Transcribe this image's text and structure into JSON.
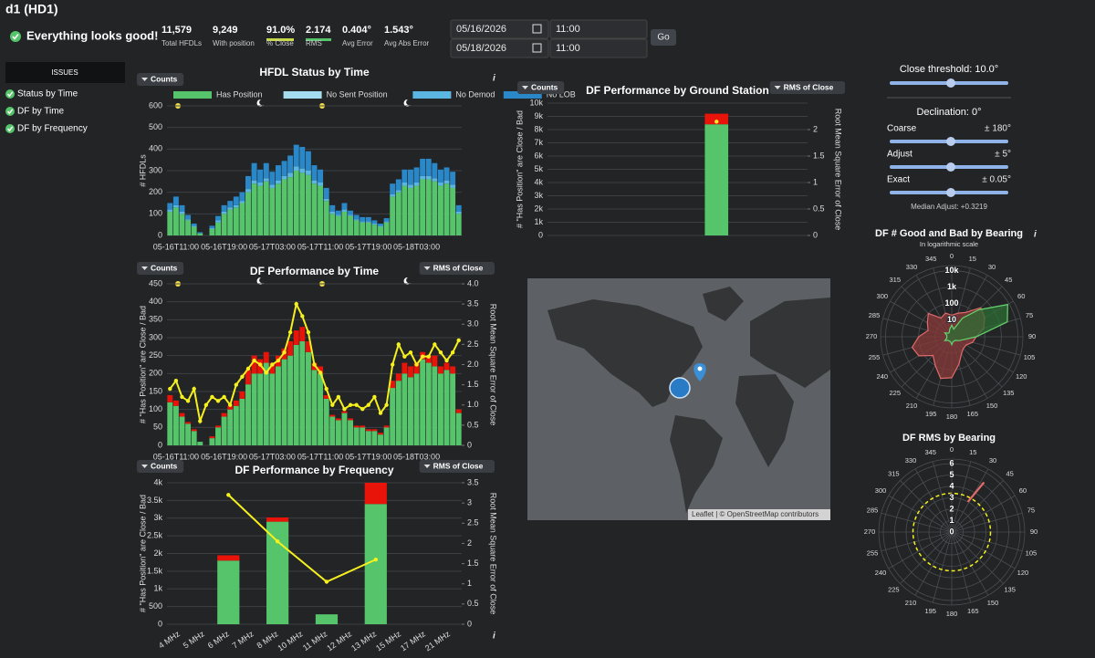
{
  "header": {
    "title": "d1 (HD1)",
    "status": "Everything looks good!",
    "stats": [
      {
        "value": "11,579",
        "label": "Total HFDLs"
      },
      {
        "value": "9,249",
        "label": "With position"
      },
      {
        "value": "91.0%",
        "label": "% Close"
      },
      {
        "value": "2.174",
        "label": "RMS"
      },
      {
        "value": "0.404°",
        "label": "Avg Error"
      },
      {
        "value": "1.543°",
        "label": "Avg Abs Error"
      }
    ],
    "start_date": "05/16/2026",
    "start_time": "11:00",
    "end_date": "05/18/2026",
    "end_time": "11:00",
    "go": "Go"
  },
  "sidebar": {
    "heading": "ISSUES",
    "items": [
      "Status by Time",
      "DF by Time",
      "DF by Frequency"
    ]
  },
  "controls": {
    "close_threshold": "Close threshold: 10.0°",
    "declination": "Declination: 0°",
    "sliders": [
      {
        "label": "Coarse",
        "range": "± 180°"
      },
      {
        "label": "Adjust",
        "range": "± 5°"
      },
      {
        "label": "Exact",
        "range": "± 0.05°"
      }
    ],
    "median_adjust": "Median Adjust: +0.3219"
  },
  "map": {
    "attribution": "Leaflet | © OpenStreetMap contributors"
  },
  "chart_data": [
    {
      "type": "bar",
      "title": "HFDL Status by Time",
      "left_button": "Counts",
      "info": "i",
      "y_label": "# HFDLs",
      "grid": true,
      "categories": [
        null,
        "05-16T11:00",
        null,
        null,
        null,
        null,
        null,
        null,
        null,
        "05-16T19:00",
        null,
        null,
        null,
        null,
        null,
        null,
        null,
        "05-17T03:00",
        null,
        null,
        null,
        null,
        null,
        null,
        null,
        "05-17T11:00",
        null,
        null,
        null,
        null,
        null,
        null,
        null,
        "05-17T19:00",
        null,
        null,
        null,
        null,
        null,
        null,
        null,
        "05-18T03:00",
        null,
        null,
        null,
        null,
        null,
        null,
        null
      ],
      "ylim": [
        0,
        600
      ],
      "yticks": [
        0,
        100,
        200,
        300,
        400,
        500,
        600
      ],
      "series": [
        {
          "name": "Has Position",
          "color": "#55c46a",
          "values": [
            110,
            130,
            100,
            70,
            40,
            10,
            0,
            30,
            60,
            100,
            120,
            130,
            150,
            200,
            240,
            230,
            250,
            220,
            240,
            260,
            270,
            300,
            290,
            280,
            240,
            230,
            160,
            100,
            90,
            110,
            90,
            70,
            60,
            60,
            50,
            40,
            60,
            180,
            200,
            230,
            220,
            230,
            260,
            260,
            250,
            230,
            240,
            220,
            100
          ]
        },
        {
          "name": "No Sent Position",
          "color": "#a6dcef",
          "values": [
            0,
            0,
            0,
            0,
            0,
            0,
            0,
            0,
            0,
            0,
            0,
            0,
            0,
            0,
            0,
            0,
            0,
            0,
            0,
            0,
            0,
            0,
            0,
            0,
            0,
            0,
            0,
            0,
            0,
            0,
            0,
            0,
            0,
            0,
            0,
            0,
            0,
            0,
            0,
            0,
            0,
            0,
            0,
            0,
            0,
            0,
            0,
            0,
            0
          ]
        },
        {
          "name": "No Demod",
          "color": "#5cb6e2",
          "values": [
            10,
            10,
            10,
            5,
            5,
            0,
            0,
            5,
            10,
            10,
            10,
            10,
            10,
            15,
            15,
            15,
            15,
            15,
            15,
            15,
            20,
            20,
            20,
            20,
            15,
            15,
            10,
            10,
            5,
            10,
            5,
            5,
            5,
            5,
            5,
            5,
            5,
            10,
            10,
            15,
            15,
            15,
            15,
            15,
            15,
            15,
            15,
            15,
            10
          ]
        },
        {
          "name": "No LOB",
          "color": "#2a88c9",
          "values": [
            30,
            40,
            30,
            20,
            10,
            5,
            0,
            10,
            20,
            30,
            30,
            40,
            40,
            60,
            80,
            60,
            70,
            60,
            70,
            70,
            80,
            100,
            100,
            90,
            70,
            60,
            50,
            30,
            20,
            30,
            20,
            20,
            20,
            20,
            15,
            10,
            15,
            50,
            50,
            60,
            70,
            70,
            80,
            80,
            70,
            60,
            60,
            60,
            30
          ]
        }
      ]
    },
    {
      "type": "bar",
      "title": "DF Performance by Time",
      "left_button": "Counts",
      "right_button": "RMS of Close",
      "y_label": "# \"Has Position\" are Close / Bad",
      "y2_label": "Root Mean Square Error of Close",
      "grid": true,
      "categories": [
        null,
        "05-16T11:00",
        null,
        null,
        null,
        null,
        null,
        null,
        null,
        "05-16T19:00",
        null,
        null,
        null,
        null,
        null,
        null,
        null,
        "05-17T03:00",
        null,
        null,
        null,
        null,
        null,
        null,
        null,
        "05-17T11:00",
        null,
        null,
        null,
        null,
        null,
        null,
        null,
        "05-17T19:00",
        null,
        null,
        null,
        null,
        null,
        null,
        null,
        "05-18T03:00",
        null,
        null,
        null,
        null,
        null,
        null,
        null
      ],
      "ylim": [
        0,
        450
      ],
      "yticks": [
        0,
        50,
        100,
        150,
        200,
        250,
        300,
        350,
        400,
        450
      ],
      "y2lim": [
        0,
        4
      ],
      "y2ticks": [
        0,
        0.5,
        {
          "value": 1,
          "label": "1.0"
        },
        1.5,
        {
          "value": 2,
          "label": "2.0"
        },
        2.5,
        {
          "value": 3,
          "label": "3.0"
        },
        3.5,
        {
          "value": 4,
          "label": "4.0"
        }
      ],
      "series": [
        {
          "color": "#55c46a",
          "values": [
            120,
            110,
            80,
            60,
            40,
            10,
            0,
            20,
            50,
            80,
            100,
            110,
            130,
            170,
            200,
            200,
            230,
            200,
            220,
            240,
            250,
            280,
            290,
            260,
            210,
            200,
            130,
            80,
            70,
            90,
            70,
            50,
            50,
            40,
            40,
            30,
            50,
            160,
            180,
            200,
            190,
            200,
            240,
            230,
            220,
            200,
            210,
            200,
            90
          ]
        },
        {
          "color": "#e8140a",
          "values": [
            20,
            15,
            10,
            5,
            5,
            0,
            0,
            5,
            5,
            10,
            10,
            15,
            20,
            40,
            50,
            40,
            30,
            30,
            30,
            30,
            40,
            40,
            40,
            30,
            20,
            20,
            10,
            5,
            5,
            5,
            5,
            5,
            5,
            5,
            5,
            5,
            5,
            20,
            20,
            30,
            30,
            30,
            20,
            20,
            30,
            20,
            20,
            20,
            10
          ]
        },
        {
          "type": "line",
          "axis": "y2",
          "color": "#f5f01e",
          "values": [
            1.4,
            1.6,
            1.2,
            1.1,
            1.4,
            0.6,
            1.0,
            1.2,
            1.1,
            1.2,
            1.0,
            1.5,
            1.7,
            1.9,
            2.1,
            2.0,
            1.8,
            2.0,
            2.1,
            2.3,
            2.8,
            3.5,
            3.2,
            2.8,
            2.0,
            1.8,
            1.4,
            1.0,
            1.2,
            0.9,
            1.0,
            1.0,
            0.9,
            1.0,
            1.2,
            0.8,
            1.0,
            2.0,
            2.5,
            2.2,
            2.3,
            2.0,
            2.2,
            2.2,
            2.5,
            2.3,
            2.1,
            2.3,
            2.6
          ]
        }
      ]
    },
    {
      "type": "bar",
      "title": "DF Performance by Frequency",
      "left_button": "Counts",
      "right_button": "RMS of Close",
      "info": "i",
      "y_label": "# \"Has Position\" are Close / Bad",
      "y2_label": "Root Mean Square Error of Close",
      "grid": true,
      "categories": [
        "4 MHz",
        "5 MHz",
        "6 MHz",
        "7 MHz",
        "8 MHz",
        "10 MHz",
        "11 MHz",
        "12 MHz",
        "13 MHz",
        "15 MHz",
        "17 MHz",
        "21 MHz"
      ],
      "ylim": [
        0,
        4000
      ],
      "yticks": [
        0,
        500,
        {
          "value": 1000,
          "label": "1k"
        },
        {
          "value": 1500,
          "label": "1.5k"
        },
        {
          "value": 2000,
          "label": "2k"
        },
        {
          "value": 2500,
          "label": "2.5k"
        },
        {
          "value": 3000,
          "label": "3k"
        },
        {
          "value": 3500,
          "label": "3.5k"
        },
        {
          "value": 4000,
          "label": "4k"
        }
      ],
      "y2lim": [
        0,
        3.5
      ],
      "y2ticks": [
        0,
        0.5,
        1,
        1.5,
        2,
        2.5,
        3,
        3.5
      ],
      "series": [
        {
          "color": "#55c46a",
          "values": [
            null,
            null,
            1800,
            null,
            2900,
            null,
            280,
            null,
            3400,
            null,
            null,
            null
          ]
        },
        {
          "color": "#e8140a",
          "values": [
            null,
            null,
            150,
            null,
            120,
            null,
            0,
            null,
            600,
            null,
            null,
            null
          ]
        },
        {
          "type": "line",
          "axis": "y2",
          "color": "#f5f01e",
          "x": [
            "6 MHz",
            "8 MHz",
            "11 MHz",
            "13 MHz"
          ],
          "values": [
            3.2,
            2.05,
            1.05,
            1.6
          ]
        }
      ]
    },
    {
      "type": "bar",
      "title": "DF Performance by Ground Station",
      "left_button": "Counts",
      "right_button": "RMS of Close",
      "y_label": "# \"Has Position\" are Close / Bad",
      "y2_label": "Root Mean Square Error of Close",
      "grid": true,
      "categories": [
        null,
        null,
        null,
        null,
        null,
        null,
        null,
        null,
        null,
        null
      ],
      "ylim": [
        0,
        10000
      ],
      "yticks": [
        0,
        {
          "value": 1000,
          "label": "1k"
        },
        {
          "value": 2000,
          "label": "2k"
        },
        {
          "value": 3000,
          "label": "3k"
        },
        {
          "value": 4000,
          "label": "4k"
        },
        {
          "value": 5000,
          "label": "5k"
        },
        {
          "value": 6000,
          "label": "6k"
        },
        {
          "value": 7000,
          "label": "7k"
        },
        {
          "value": 8000,
          "label": "8k"
        },
        {
          "value": 9000,
          "label": "9k"
        },
        {
          "value": 10000,
          "label": "10k"
        }
      ],
      "y2lim": [
        0,
        2.5
      ],
      "y2ticks": [
        0,
        0.5,
        1,
        1.5,
        2
      ],
      "series": [
        {
          "color": "#55c46a",
          "values": [
            null,
            null,
            null,
            null,
            null,
            null,
            8400,
            null,
            null,
            null
          ]
        },
        {
          "color": "#e8140a",
          "values": [
            null,
            null,
            null,
            null,
            null,
            null,
            800,
            null,
            null,
            null
          ]
        },
        {
          "type": "line",
          "axis": "y2",
          "color": "#f5f01e",
          "values": [
            null,
            null,
            null,
            null,
            null,
            null,
            2.15,
            null,
            null,
            null
          ]
        }
      ]
    },
    {
      "type": "polar",
      "title": "DF # Good and Bad by Bearing",
      "subtitle": "In logarithmic scale",
      "info": "i",
      "log": true,
      "rlim": [
        1,
        20000
      ],
      "rticks": [
        10,
        100,
        {
          "value": 1000,
          "label": "1k"
        },
        {
          "value": 10000,
          "label": "10k"
        }
      ],
      "thetaticks": [
        0,
        15,
        30,
        45,
        60,
        75,
        90,
        105,
        120,
        135,
        150,
        165,
        180,
        195,
        210,
        225,
        240,
        255,
        270,
        285,
        300,
        315,
        330,
        345
      ],
      "series": [
        {
          "color": "#e36a6a",
          "fill": "#8a3a3a",
          "values": [
            20,
            30,
            50,
            300,
            200,
            100,
            30,
            20,
            10,
            10,
            15,
            50,
            300,
            400,
            100,
            40,
            200,
            300,
            100,
            30,
            50,
            100,
            20,
            30
          ]
        },
        {
          "color": "#66d36e",
          "fill": "#2e6e34",
          "values": [
            5,
            3,
            20,
            200,
            8000,
            3000,
            30,
            5,
            3,
            2,
            2,
            2,
            3,
            2,
            2,
            2,
            3,
            2,
            2,
            2,
            3,
            2,
            2,
            3
          ]
        }
      ]
    },
    {
      "type": "polar",
      "title": "DF RMS by Bearing",
      "rlim": [
        0,
        6.4
      ],
      "rticks": [
        0,
        1,
        2,
        3,
        4,
        5,
        6
      ],
      "thetaticks": [
        0,
        15,
        30,
        45,
        60,
        75,
        90,
        105,
        120,
        135,
        150,
        165,
        180,
        195,
        210,
        225,
        240,
        255,
        270,
        285,
        300,
        315,
        330,
        345
      ],
      "circle": {
        "value": 3.4,
        "color": "#f5f01e"
      },
      "series": [
        {
          "color": "#e36a6a",
          "theta": [
            28,
            33
          ],
          "values": [
            3,
            5.2
          ]
        }
      ]
    }
  ]
}
